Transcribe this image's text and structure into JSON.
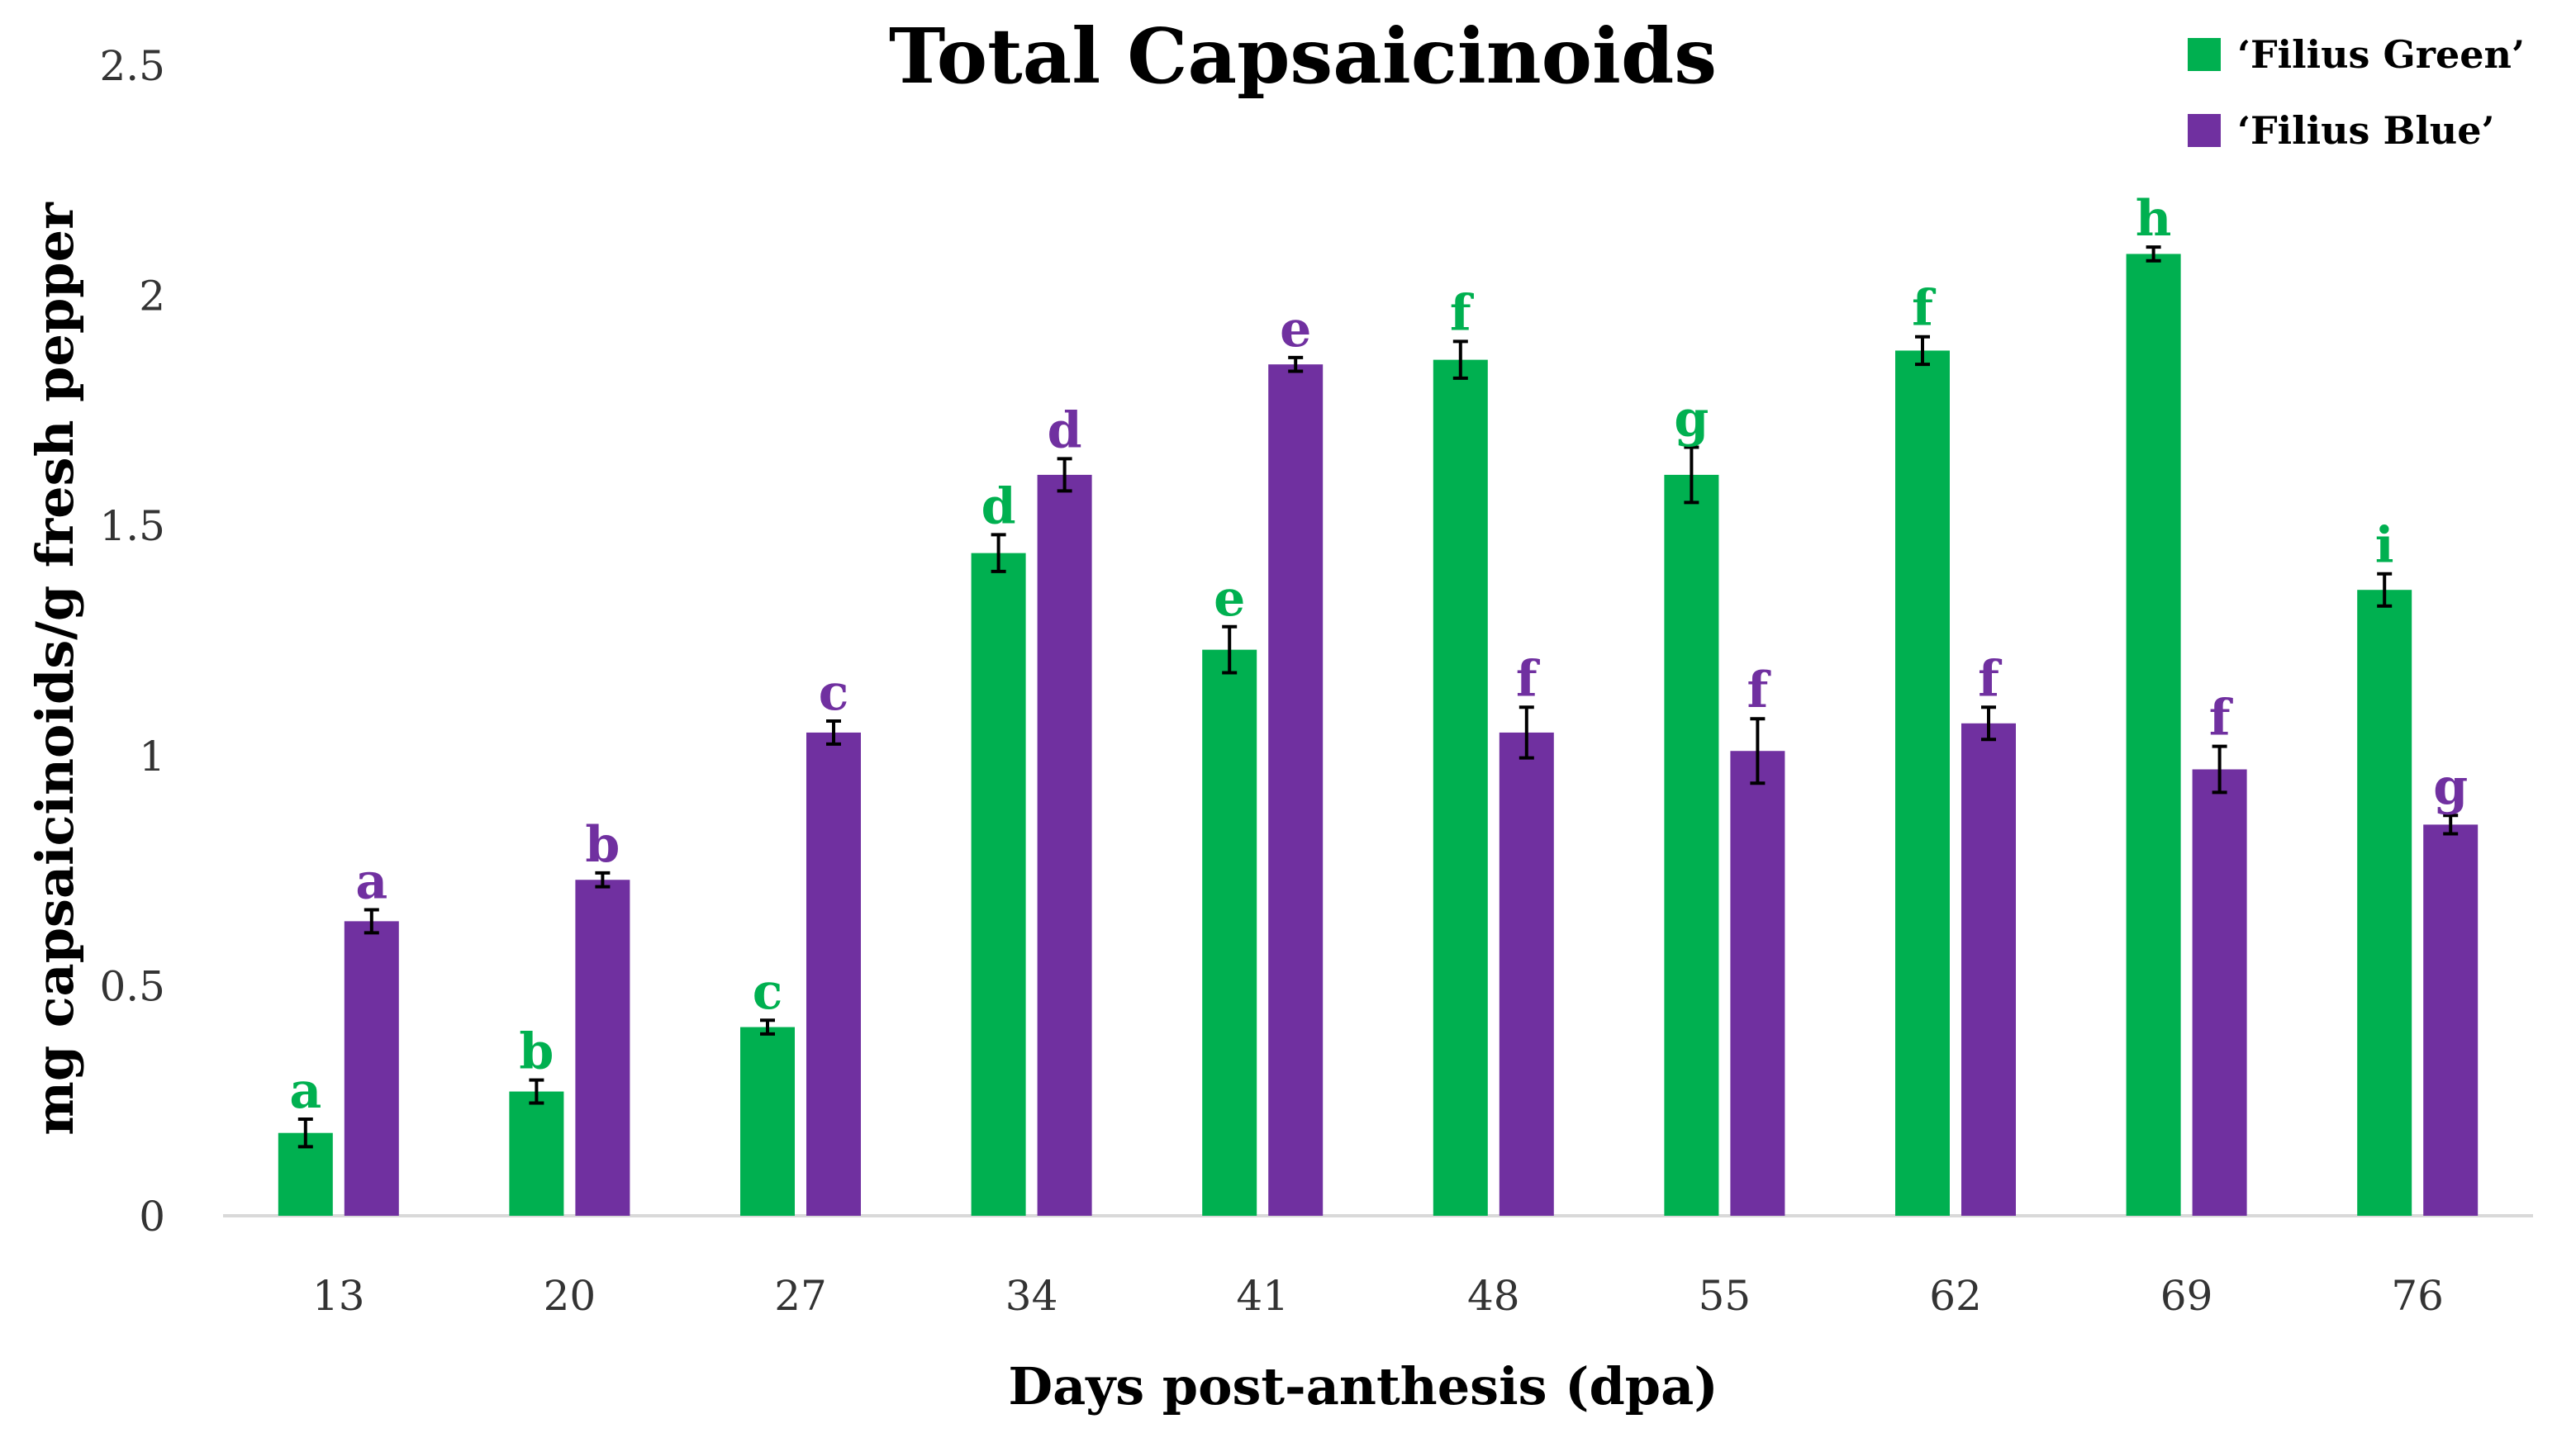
{
  "chart_data": {
    "type": "bar",
    "title": "Total Capsaicinoids",
    "xlabel": "Days post-anthesis (dpa)",
    "ylabel": "mg capsaicinoids/g fresh pepper",
    "ylim": [
      0,
      2.5
    ],
    "yticks": [
      "0",
      "0.5",
      "1",
      "1.5",
      "2",
      "2.5"
    ],
    "yticks_values": [
      0,
      0.5,
      1,
      1.5,
      2,
      2.5
    ],
    "grid": false,
    "legend_position": "top-right",
    "categories": [
      "13",
      "20",
      "27",
      "34",
      "41",
      "48",
      "55",
      "62",
      "69",
      "76"
    ],
    "series": [
      {
        "name": "‘Filius Green’",
        "color": "#00b050",
        "values": [
          0.18,
          0.27,
          0.41,
          1.44,
          1.23,
          1.86,
          1.61,
          1.88,
          2.09,
          1.36
        ],
        "errors": [
          0.03,
          0.025,
          0.015,
          0.04,
          0.05,
          0.04,
          0.06,
          0.03,
          0.015,
          0.035
        ],
        "labels": [
          "a",
          "b",
          "c",
          "d",
          "e",
          "f",
          "g",
          "f",
          "h",
          "i"
        ]
      },
      {
        "name": "‘Filius Blue’",
        "color": "#7030a0",
        "values": [
          0.64,
          0.73,
          1.05,
          1.61,
          1.85,
          1.05,
          1.01,
          1.07,
          0.97,
          0.85
        ],
        "errors": [
          0.025,
          0.015,
          0.025,
          0.035,
          0.015,
          0.055,
          0.07,
          0.035,
          0.05,
          0.02
        ],
        "labels": [
          "a",
          "b",
          "c",
          "d",
          "e",
          "f",
          "f",
          "f",
          "f",
          "g"
        ]
      }
    ]
  }
}
